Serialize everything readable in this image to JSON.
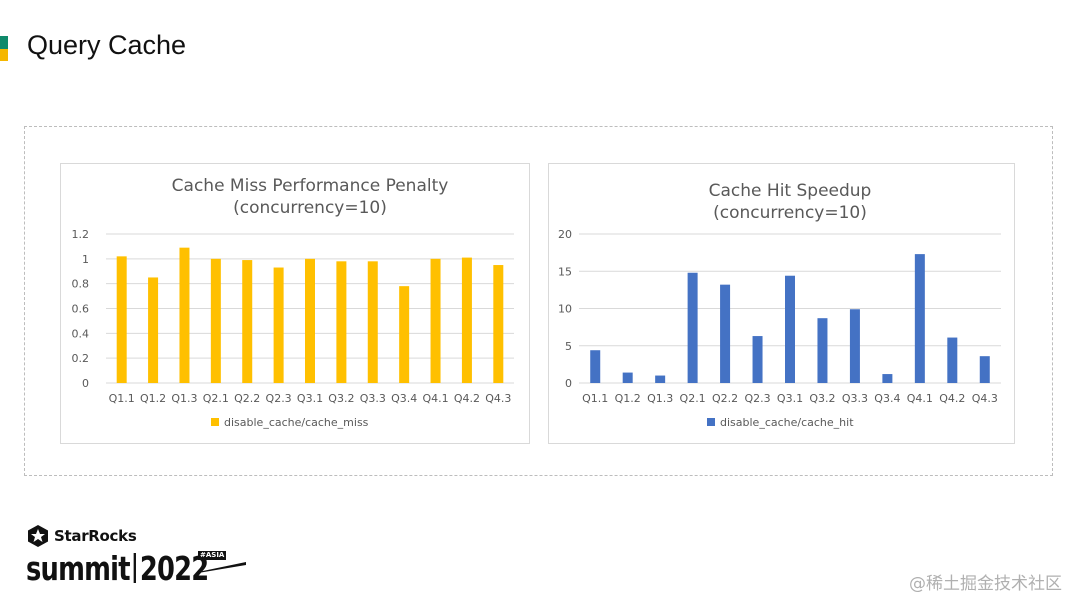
{
  "slide": {
    "title": "Query Cache",
    "accent_colors": [
      "#0f8a6b",
      "#f5b700"
    ]
  },
  "logo": {
    "brand": "StarRocks",
    "summit_word": "summit",
    "summit_year": "2022",
    "tag": "#ASIA"
  },
  "watermark": "@稀土掘金技术社区",
  "chart_data": [
    {
      "type": "bar",
      "title": "Cache Miss Performance Penalty",
      "subtitle": "(concurrency=10)",
      "categories": [
        "Q1.1",
        "Q1.2",
        "Q1.3",
        "Q2.1",
        "Q2.2",
        "Q2.3",
        "Q3.1",
        "Q3.2",
        "Q3.3",
        "Q3.4",
        "Q4.1",
        "Q4.2",
        "Q4.3"
      ],
      "series": [
        {
          "name": "disable_cache/cache_miss",
          "color": "#ffc000",
          "values": [
            1.02,
            0.85,
            1.09,
            1.0,
            0.99,
            0.93,
            1.0,
            0.98,
            0.98,
            0.78,
            1.0,
            1.01,
            0.95
          ]
        }
      ],
      "yticks": [
        "0",
        "0.2",
        "0.4",
        "0.6",
        "0.8",
        "1",
        "1.2"
      ],
      "ylim": [
        0,
        1.2
      ],
      "grid": true,
      "legend_position": "bottom"
    },
    {
      "type": "bar",
      "title": "Cache Hit Speedup",
      "subtitle": "(concurrency=10)",
      "categories": [
        "Q1.1",
        "Q1.2",
        "Q1.3",
        "Q2.1",
        "Q2.2",
        "Q2.3",
        "Q3.1",
        "Q3.2",
        "Q3.3",
        "Q3.4",
        "Q4.1",
        "Q4.2",
        "Q4.3"
      ],
      "series": [
        {
          "name": "disable_cache/cache_hit",
          "color": "#4472c4",
          "values": [
            4.4,
            1.4,
            1.0,
            14.8,
            13.2,
            6.3,
            14.4,
            8.7,
            9.9,
            1.2,
            17.3,
            6.1,
            3.6
          ]
        }
      ],
      "yticks": [
        "0",
        "5",
        "10",
        "15",
        "20"
      ],
      "ylim": [
        0,
        20
      ],
      "grid": true,
      "legend_position": "bottom"
    }
  ]
}
